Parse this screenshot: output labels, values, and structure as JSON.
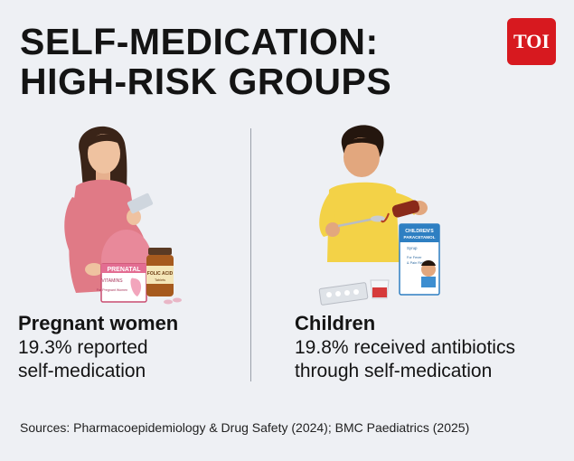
{
  "header": {
    "title_line1": "SELF-MEDICATION:",
    "title_line2": "HIGH-RISK GROUPS",
    "logo_text": "TOI"
  },
  "groups": [
    {
      "name": "Pregnant women",
      "stat_line1": "19.3% reported",
      "stat_line2": "self-medication",
      "illustration": "pregnant-woman-with-pills-illustration",
      "packaging": {
        "box_title": "PRENATAL",
        "box_sub": "VITAMINS",
        "box_note": "For Pregnant Women",
        "bottle_label": "FOLIC ACID",
        "bottle_sub": "Tablets"
      }
    },
    {
      "name": "Children",
      "stat_line1": "19.8% received antibiotics",
      "stat_line2": "through self-medication",
      "illustration": "child-with-syrup-illustration",
      "packaging": {
        "box_line1": "CHILDREN'S",
        "box_line2": "PARACETAMOL",
        "box_line3": "Syrup",
        "box_line4": "For Fever",
        "box_line5": "& Pain Relief"
      }
    }
  ],
  "footer": {
    "sources": "Sources: Pharmacoepidemiology & Drug Safety (2024); BMC Paediatrics (2025)"
  },
  "colors": {
    "background": "#eef0f4",
    "logo": "#d7191f",
    "text": "#141414"
  }
}
